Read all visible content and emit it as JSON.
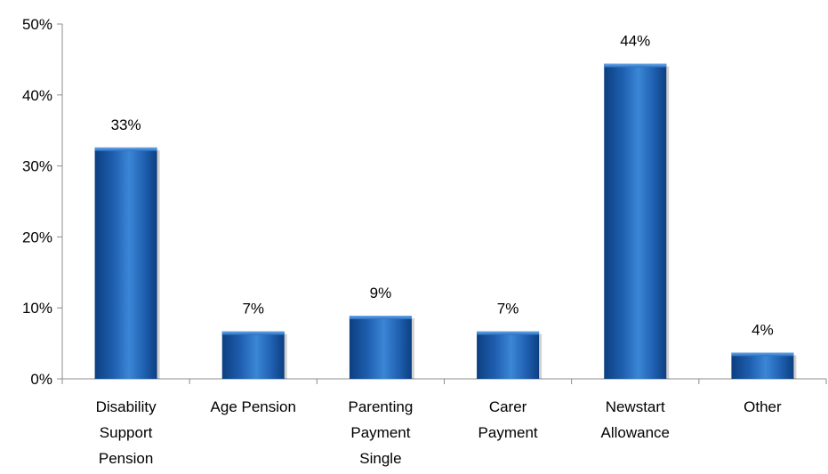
{
  "chart_data": {
    "type": "bar",
    "categories": [
      [
        "Disability",
        "Support",
        "Pension"
      ],
      [
        "Age Pension"
      ],
      [
        "Parenting",
        "Payment",
        "Single"
      ],
      [
        "Carer",
        "Payment"
      ],
      [
        "Newstart",
        "Allowance"
      ],
      [
        "Other"
      ]
    ],
    "values": [
      32.6,
      6.7,
      8.9,
      6.7,
      44.4,
      3.7
    ],
    "data_labels": [
      "33%",
      "7%",
      "9%",
      "7%",
      "44%",
      "4%"
    ],
    "yticks": [
      "0%",
      "10%",
      "20%",
      "30%",
      "40%",
      "50%"
    ],
    "ylim": [
      0,
      50
    ],
    "grid": false,
    "colors": {
      "bar": "#1f5fb0",
      "bar_light": "#3b86d6",
      "bar_dark": "#0c3f80",
      "axis": "#8c8c8c"
    }
  }
}
